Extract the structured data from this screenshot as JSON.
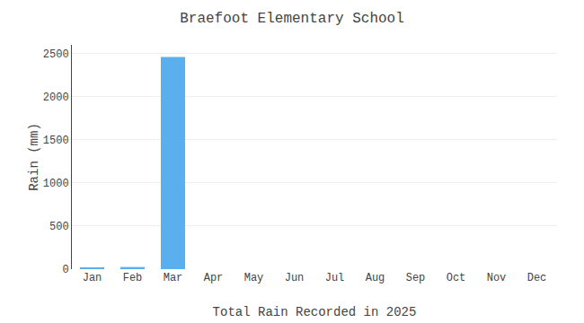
{
  "chart_data": {
    "type": "bar",
    "title": "Braefoot Elementary School",
    "xlabel": "Total Rain Recorded in 2025",
    "ylabel": "Rain (mm)",
    "categories": [
      "Jan",
      "Feb",
      "Mar",
      "Apr",
      "May",
      "Jun",
      "Jul",
      "Aug",
      "Sep",
      "Oct",
      "Nov",
      "Dec"
    ],
    "values": [
      22,
      25,
      2460,
      0,
      0,
      0,
      0,
      0,
      0,
      0,
      0,
      0
    ],
    "color": "#5aafef",
    "ylim": [
      0,
      2600
    ],
    "yticks": [
      0,
      500,
      1000,
      1500,
      2000,
      2500
    ],
    "grid": true
  }
}
